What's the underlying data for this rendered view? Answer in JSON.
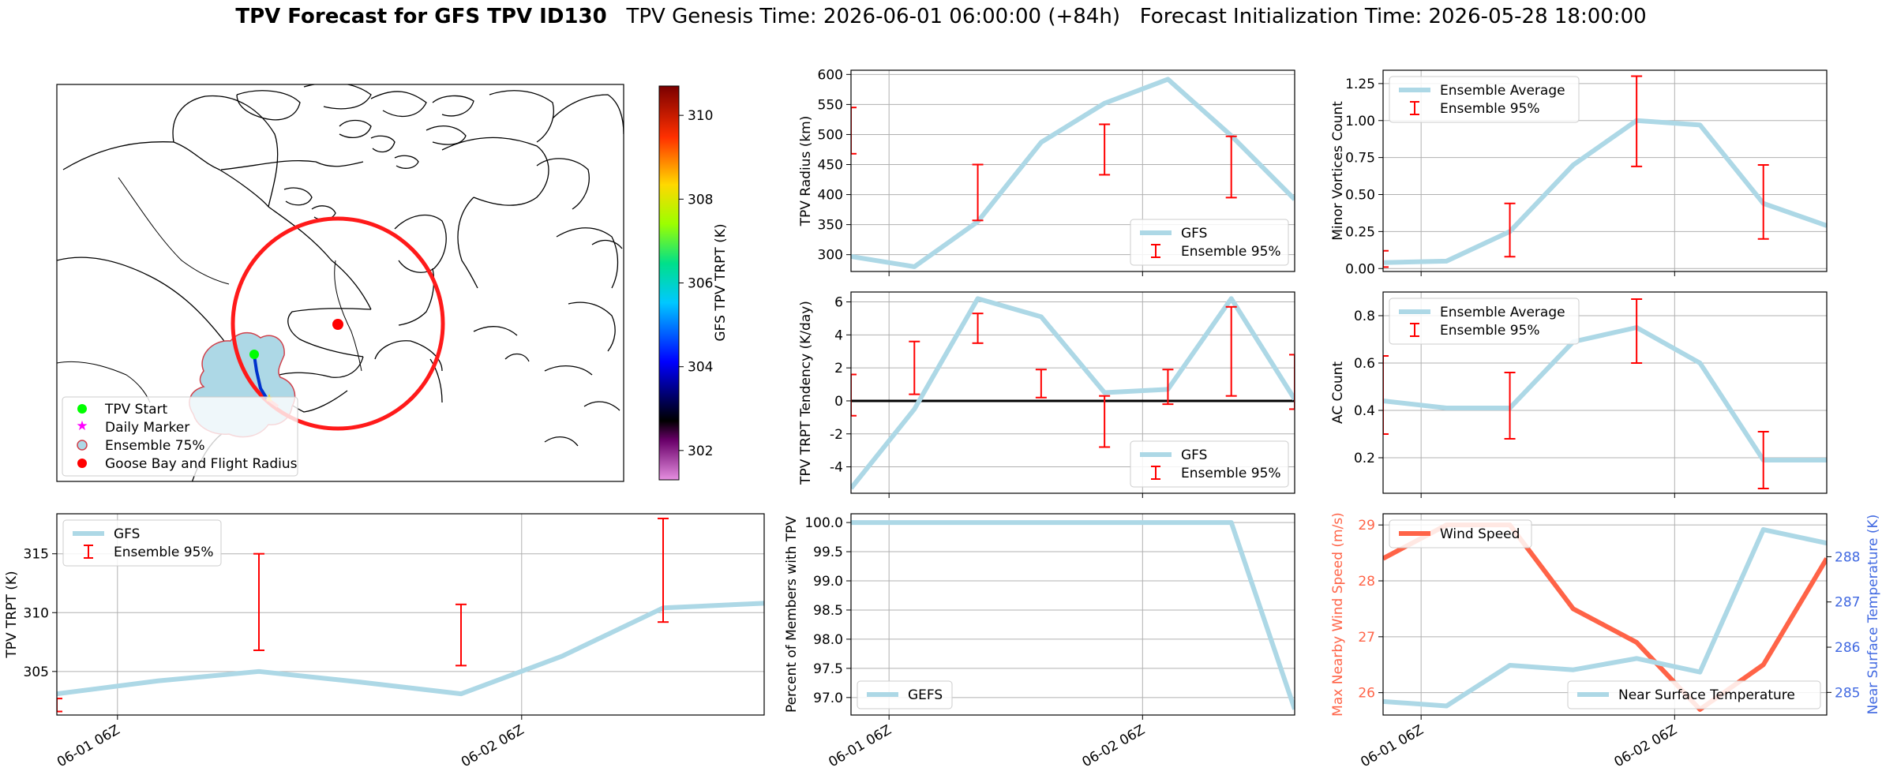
{
  "title": {
    "bold": "TPV Forecast for GFS TPV ID130",
    "genesis": "TPV Genesis Time: 2026-06-01 06:00:00 (+84h)",
    "init": "Forecast Initialization Time: 2026-05-28 18:00:00"
  },
  "colors": {
    "gfs_line": "#add8e6",
    "errbar": "#ff0000",
    "wind": "#ff6347",
    "temp_axis": "#4169e1",
    "zero_line": "#000000"
  },
  "map": {
    "legend": [
      "TPV Start",
      "Daily Marker",
      "Ensemble 75%",
      "Goose Bay and Flight Radius"
    ],
    "colorbar": {
      "label": "GFS TPV TRPT (K)",
      "ticks": [
        302,
        304,
        306,
        308,
        310
      ],
      "range": [
        301.3,
        310.7
      ]
    }
  },
  "x_ticks": [
    "06-01 06Z",
    "06-02 06Z"
  ],
  "chart_data": [
    {
      "id": "radius",
      "type": "line",
      "ylabel": "TPV Radius (km)",
      "ylim": [
        272,
        607
      ],
      "yticks": [
        300,
        350,
        400,
        450,
        500,
        550,
        600
      ],
      "x": [
        0,
        1,
        2,
        3,
        4,
        5,
        6,
        7
      ],
      "series": [
        {
          "name": "GFS",
          "values": [
            297,
            280,
            355,
            487,
            552,
            592,
            498,
            392
          ]
        }
      ],
      "errbars": {
        "name": "Ensemble 95%",
        "points": [
          {
            "x": 0,
            "lo": 468,
            "hi": 545
          },
          {
            "x": 2,
            "lo": 357,
            "hi": 450
          },
          {
            "x": 4,
            "lo": 433,
            "hi": 517
          },
          {
            "x": 6,
            "lo": 395,
            "hi": 497
          }
        ]
      },
      "legend": [
        "GFS",
        "Ensemble 95%"
      ],
      "legend_pos": "lower-right"
    },
    {
      "id": "minor",
      "type": "line",
      "ylabel": "Minor Vortices Count",
      "ylim": [
        -0.02,
        1.34
      ],
      "yticks": [
        0.0,
        0.25,
        0.5,
        0.75,
        1.0,
        1.25
      ],
      "ytick_labels": [
        "0.00",
        "0.25",
        "0.50",
        "0.75",
        "1.00",
        "1.25"
      ],
      "x": [
        0,
        1,
        2,
        3,
        4,
        5,
        6,
        7
      ],
      "series": [
        {
          "name": "Ensemble Average",
          "values": [
            0.04,
            0.05,
            0.25,
            0.7,
            1.0,
            0.97,
            0.44,
            0.29
          ]
        }
      ],
      "errbars": {
        "name": "Ensemble 95%",
        "points": [
          {
            "x": 0,
            "lo": 0.01,
            "hi": 0.12
          },
          {
            "x": 2,
            "lo": 0.08,
            "hi": 0.44
          },
          {
            "x": 4,
            "lo": 0.69,
            "hi": 1.3
          },
          {
            "x": 6,
            "lo": 0.2,
            "hi": 0.7
          }
        ]
      },
      "legend": [
        "Ensemble Average",
        "Ensemble 95%"
      ],
      "legend_pos": "upper-left"
    },
    {
      "id": "tendency",
      "type": "line",
      "ylabel": "TPV TRPT Tendency (K/day)",
      "ylim": [
        -5.6,
        6.6
      ],
      "yticks": [
        -4,
        -2,
        0,
        2,
        4,
        6
      ],
      "zero_line": true,
      "x": [
        0,
        1,
        2,
        3,
        4,
        5,
        6,
        7
      ],
      "series": [
        {
          "name": "GFS",
          "values": [
            -5.3,
            -0.5,
            6.2,
            5.1,
            0.5,
            0.7,
            6.2,
            0.1
          ]
        }
      ],
      "errbars": {
        "name": "Ensemble 95%",
        "points": [
          {
            "x": 0,
            "lo": -0.9,
            "hi": 1.6
          },
          {
            "x": 1,
            "lo": 0.4,
            "hi": 3.6
          },
          {
            "x": 2,
            "lo": 3.5,
            "hi": 5.3
          },
          {
            "x": 3,
            "lo": 0.2,
            "hi": 1.9
          },
          {
            "x": 4,
            "lo": -2.8,
            "hi": 0.3
          },
          {
            "x": 5,
            "lo": -0.2,
            "hi": 1.9
          },
          {
            "x": 6,
            "lo": 0.3,
            "hi": 5.7
          },
          {
            "x": 7,
            "lo": -0.5,
            "hi": 2.8
          }
        ]
      },
      "legend": [
        "GFS",
        "Ensemble 95%"
      ],
      "legend_pos": "lower-right"
    },
    {
      "id": "ac",
      "type": "line",
      "ylabel": "AC Count",
      "ylim": [
        0.05,
        0.9
      ],
      "yticks": [
        0.2,
        0.4,
        0.6,
        0.8
      ],
      "x": [
        0,
        1,
        2,
        3,
        4,
        5,
        6,
        7
      ],
      "series": [
        {
          "name": "Ensemble Average",
          "values": [
            0.44,
            0.41,
            0.41,
            0.69,
            0.75,
            0.6,
            0.19,
            0.19
          ]
        }
      ],
      "errbars": {
        "name": "Ensemble 95%",
        "points": [
          {
            "x": 0,
            "lo": 0.3,
            "hi": 0.63
          },
          {
            "x": 2,
            "lo": 0.28,
            "hi": 0.56
          },
          {
            "x": 4,
            "lo": 0.6,
            "hi": 0.87
          },
          {
            "x": 6,
            "lo": 0.07,
            "hi": 0.31
          }
        ]
      },
      "legend": [
        "Ensemble Average",
        "Ensemble 95%"
      ],
      "legend_pos": "upper-left"
    },
    {
      "id": "trpt",
      "type": "line",
      "ylabel": "TPV TRPT (K)",
      "ylim": [
        301.3,
        318.4
      ],
      "yticks": [
        305,
        310,
        315
      ],
      "x": [
        0,
        1,
        2,
        3,
        4,
        5,
        6,
        7
      ],
      "series": [
        {
          "name": "GFS",
          "values": [
            303.1,
            304.2,
            305.0,
            304.1,
            303.1,
            306.3,
            310.4,
            310.8
          ]
        }
      ],
      "errbars": {
        "name": "Ensemble 95%",
        "points": [
          {
            "x": 0,
            "lo": 301.6,
            "hi": 302.7
          },
          {
            "x": 2,
            "lo": 306.8,
            "hi": 315.0
          },
          {
            "x": 4,
            "lo": 305.5,
            "hi": 310.7
          },
          {
            "x": 6,
            "lo": 309.2,
            "hi": 318.0
          }
        ]
      },
      "legend": [
        "GFS",
        "Ensemble 95%"
      ],
      "legend_pos": "upper-left"
    },
    {
      "id": "percent",
      "type": "line",
      "ylabel": "Percent of Members with TPV",
      "ylim": [
        96.7,
        100.15
      ],
      "yticks": [
        97.0,
        97.5,
        98.0,
        98.5,
        99.0,
        99.5,
        100.0
      ],
      "ytick_labels": [
        "97.0",
        "97.5",
        "98.0",
        "98.5",
        "99.0",
        "99.5",
        "100.0"
      ],
      "x": [
        0,
        1,
        2,
        3,
        4,
        5,
        6,
        7
      ],
      "series": [
        {
          "name": "GEFS",
          "values": [
            100,
            100,
            100,
            100,
            100,
            100,
            100,
            96.8
          ]
        }
      ],
      "legend": [
        "GEFS"
      ],
      "legend_pos": "lower-left"
    },
    {
      "id": "wind_temp",
      "type": "line",
      "ylabel": "Max Nearby Wind Speed (m/s)",
      "ylabel2": "Near Surface Temperature (K)",
      "ylim": [
        25.6,
        29.2
      ],
      "yticks": [
        26,
        27,
        28,
        29
      ],
      "ylim2": [
        284.5,
        288.95
      ],
      "yticks2": [
        285,
        286,
        287,
        288
      ],
      "x": [
        0,
        1,
        2,
        3,
        4,
        5,
        6,
        7
      ],
      "series": [
        {
          "name": "Wind Speed",
          "axis": "left",
          "values": [
            28.4,
            29.0,
            29.0,
            27.5,
            26.9,
            25.7,
            26.5,
            28.4
          ]
        },
        {
          "name": "Near Surface Temperature",
          "axis": "right",
          "values": [
            284.8,
            284.7,
            285.6,
            285.5,
            285.75,
            285.45,
            288.6,
            288.3
          ]
        }
      ],
      "legend_left": [
        "Wind Speed"
      ],
      "legend_right": [
        "Near Surface Temperature"
      ]
    }
  ]
}
